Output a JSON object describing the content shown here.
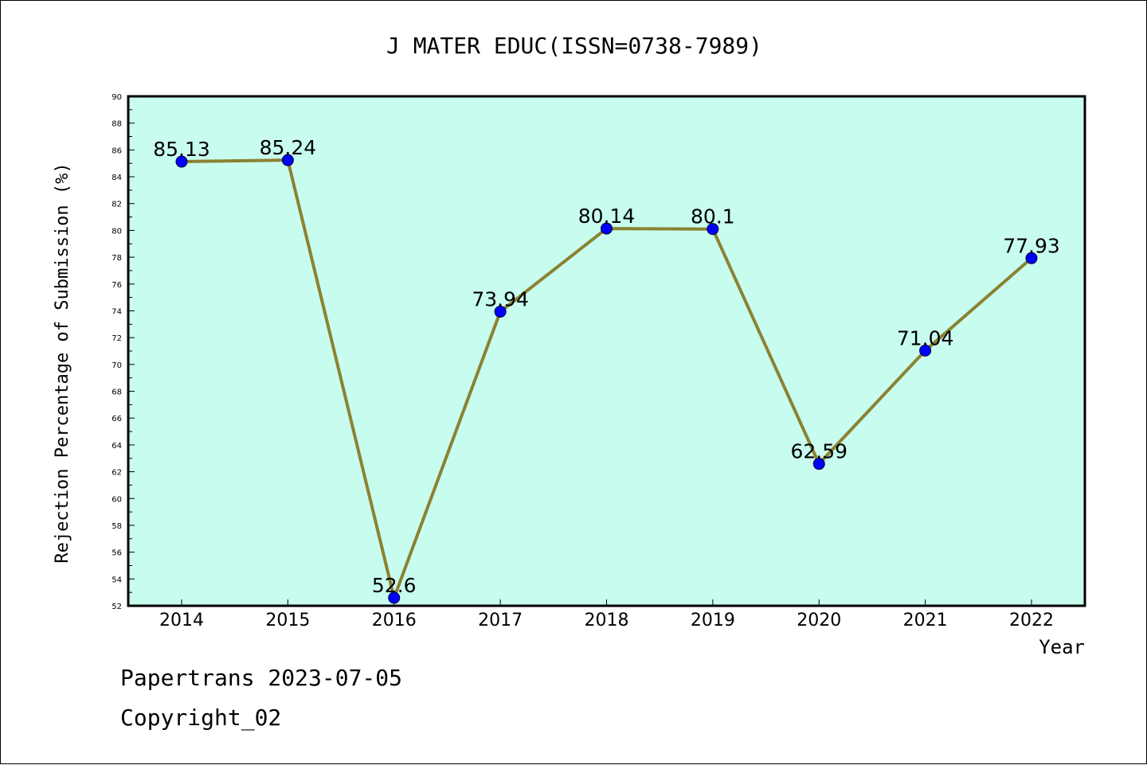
{
  "chart_data": {
    "type": "line",
    "title": "J MATER EDUC(ISSN=0738-7989)",
    "xlabel": "Year",
    "ylabel": "Rejection Percentage of Submission (%)",
    "categories": [
      "2014",
      "2015",
      "2016",
      "2017",
      "2018",
      "2019",
      "2020",
      "2021",
      "2022"
    ],
    "series": [
      {
        "values": [
          85.13,
          85.24,
          52.6,
          73.94,
          80.14,
          80.1,
          62.59,
          71.04,
          77.93
        ],
        "labels": [
          "85.13",
          "85.24",
          "52.6",
          "73.94",
          "80.14",
          "80.1",
          "62.59",
          "71.04",
          "77.93"
        ],
        "line_color": "#8b8232",
        "marker_color": "#0000ff"
      }
    ],
    "ylim": [
      52,
      90
    ],
    "yticks": [
      52,
      54,
      56,
      58,
      60,
      62,
      64,
      66,
      68,
      70,
      72,
      74,
      76,
      78,
      80,
      82,
      84,
      86,
      88,
      90
    ],
    "plot_background": "#c8fcee",
    "grid": false,
    "legend": "none"
  },
  "footer": {
    "line1": "Papertrans 2023-07-05",
    "line2": "Copyright_02"
  }
}
